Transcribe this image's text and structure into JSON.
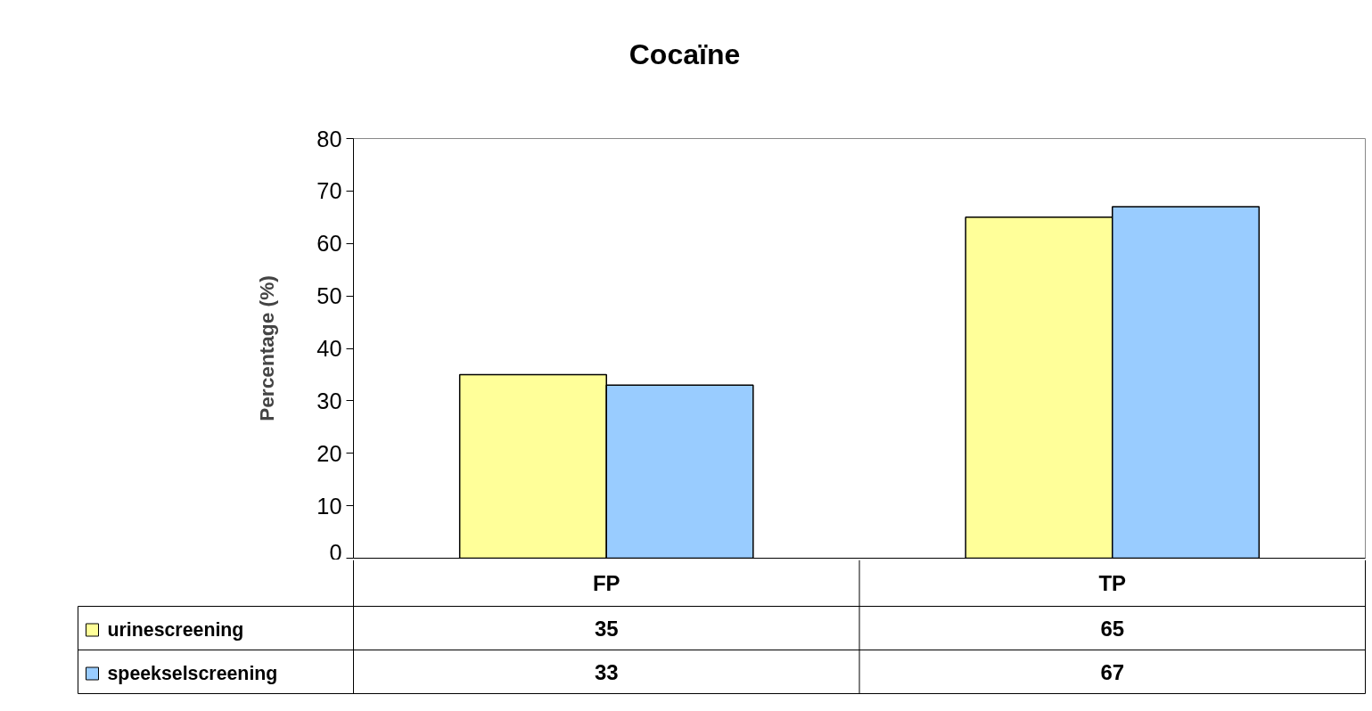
{
  "chart_data": {
    "type": "bar",
    "title": "Cocaïne",
    "ylabel": "Percentage (%)",
    "categories": [
      "FP",
      "TP"
    ],
    "series": [
      {
        "name": "urinescreening",
        "color": "#ffff99",
        "values": [
          35,
          65
        ]
      },
      {
        "name": "speekselscreening",
        "color": "#99ccff",
        "values": [
          33,
          67
        ]
      }
    ],
    "ylim": [
      0,
      80
    ],
    "yticks": [
      0,
      10,
      20,
      30,
      40,
      50,
      60,
      70,
      80
    ],
    "grid": false,
    "legend": "bottom",
    "data_labels": true
  }
}
